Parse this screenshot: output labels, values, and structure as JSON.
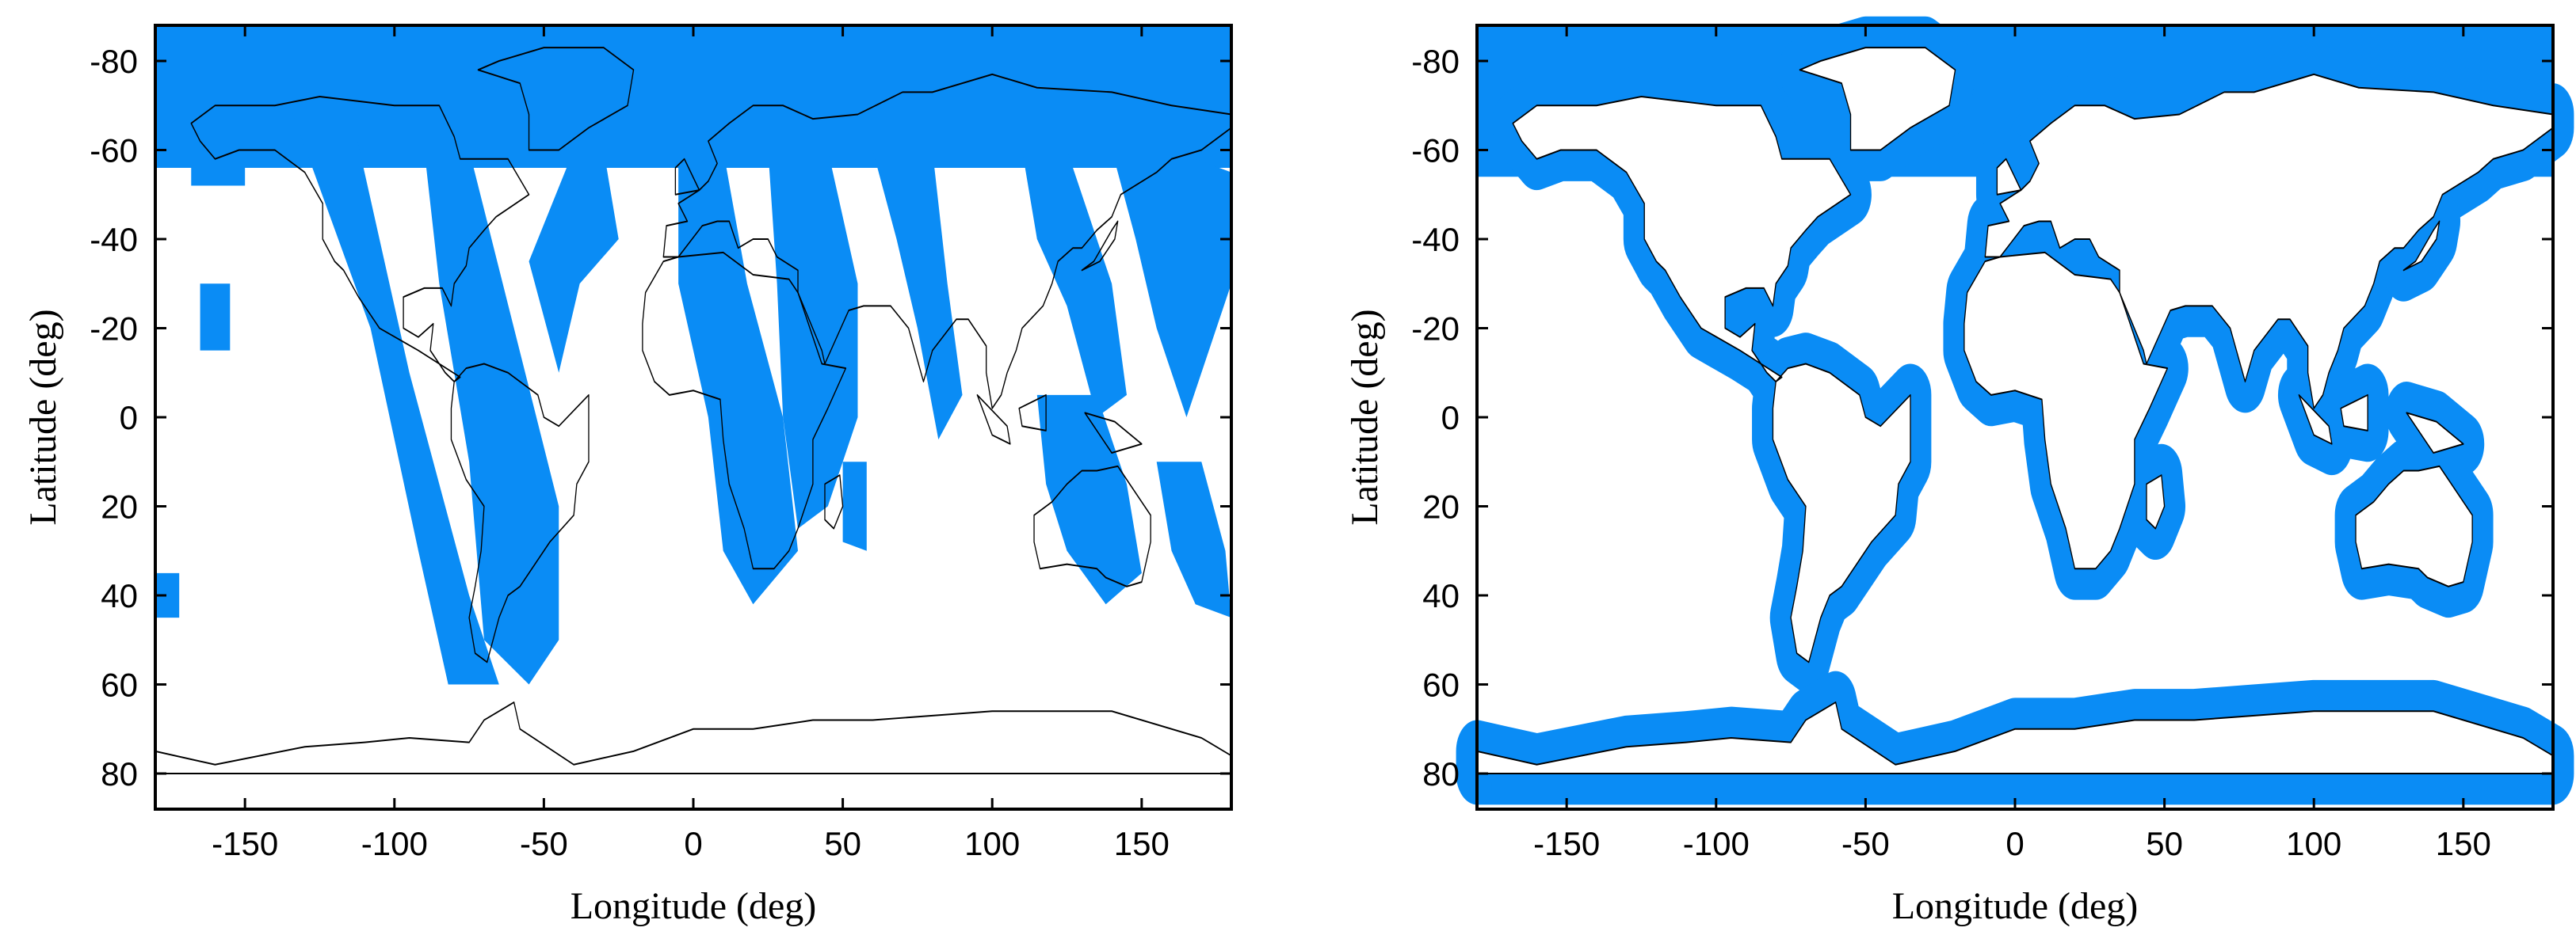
{
  "chart_data": [
    {
      "type": "map",
      "id": "left",
      "xlabel": "Longitude (deg)",
      "ylabel": "Latitude (deg)",
      "xlim": [
        -180,
        180
      ],
      "ylim": [
        -88,
        88
      ],
      "y_reversed": true,
      "xticks": [
        -150,
        -100,
        -50,
        0,
        50,
        100,
        150
      ],
      "yticks": [
        -80,
        -60,
        -40,
        -20,
        0,
        20,
        40,
        60,
        80
      ],
      "grid": false,
      "coverage_color": "#0a8cf5",
      "coastline_color": "#000000",
      "coverage_pattern": "polar band plus diagonal satellite ground-track swaths"
    },
    {
      "type": "map",
      "id": "right",
      "xlabel": "Longitude (deg)",
      "ylabel": "Latitude (deg)",
      "xlim": [
        -180,
        180
      ],
      "ylim": [
        -88,
        88
      ],
      "y_reversed": true,
      "xticks": [
        -150,
        -100,
        -50,
        0,
        50,
        100,
        150
      ],
      "yticks": [
        -80,
        -60,
        -40,
        -20,
        0,
        20,
        40,
        60,
        80
      ],
      "grid": false,
      "coverage_color": "#0a8cf5",
      "coastline_color": "#000000",
      "coverage_pattern": "polar band plus coastal buffer band around continents"
    }
  ]
}
